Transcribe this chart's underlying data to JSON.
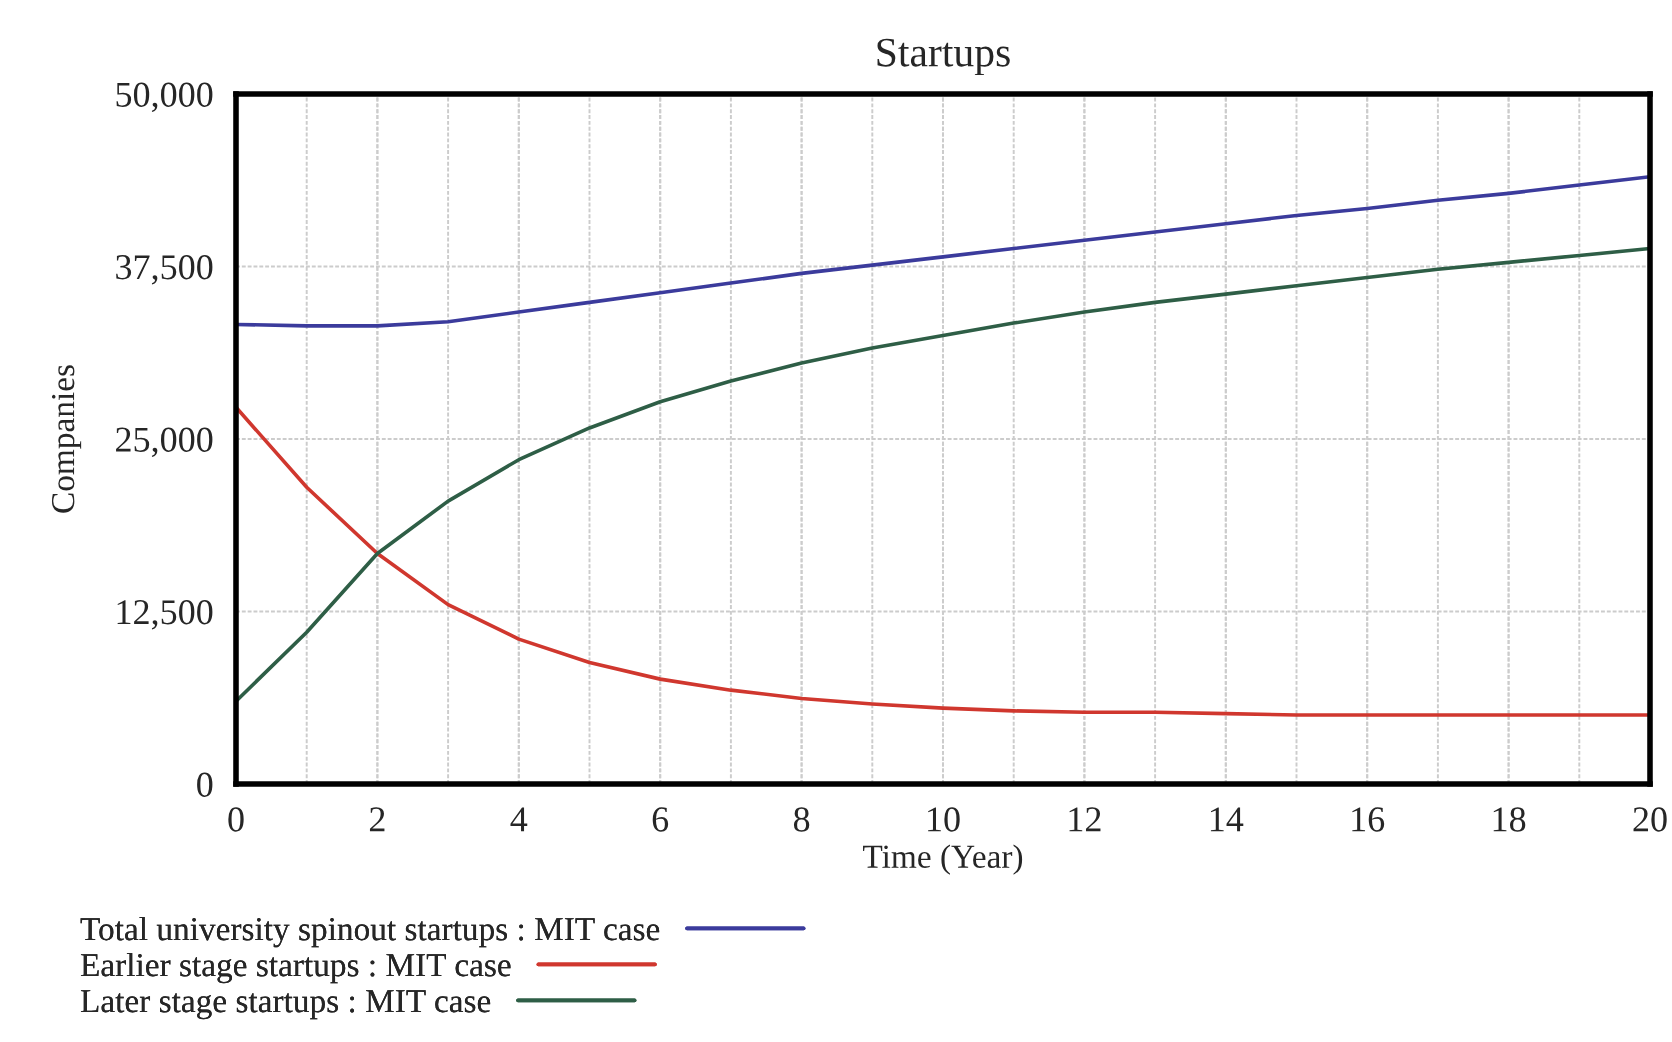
{
  "chart_data": {
    "type": "line",
    "title": "Startups",
    "xlabel": "Time (Year)",
    "ylabel": "Companies",
    "x": [
      0,
      1,
      2,
      3,
      4,
      5,
      6,
      7,
      8,
      9,
      10,
      11,
      12,
      13,
      14,
      15,
      16,
      17,
      18,
      19,
      20
    ],
    "series": [
      {
        "name": "Total university spinout startups : MIT case",
        "color": "#3b3b9c",
        "values": [
          33300,
          33200,
          33200,
          33500,
          34200,
          34900,
          35600,
          36300,
          37000,
          37600,
          38200,
          38800,
          39400,
          40000,
          40600,
          41200,
          41700,
          42300,
          42800,
          43400,
          44000
        ]
      },
      {
        "name": "Earlier stage startups : MIT case",
        "color": "#d0372e",
        "values": [
          27300,
          21500,
          16700,
          13000,
          10500,
          8800,
          7600,
          6800,
          6200,
          5800,
          5500,
          5300,
          5200,
          5200,
          5100,
          5000,
          5000,
          5000,
          5000,
          5000,
          5000
        ]
      },
      {
        "name": "Later stage startups : MIT case",
        "color": "#2e5e46",
        "values": [
          6000,
          11000,
          16700,
          20500,
          23500,
          25800,
          27700,
          29200,
          30500,
          31600,
          32500,
          33400,
          34200,
          34900,
          35500,
          36100,
          36700,
          37300,
          37800,
          38300,
          38800
        ]
      }
    ],
    "xlim": [
      0,
      20
    ],
    "xticks": [
      0,
      2,
      4,
      6,
      8,
      10,
      12,
      14,
      16,
      18,
      20
    ],
    "ylim": [
      0,
      50000
    ],
    "yticks": [
      {
        "value": 0,
        "label": "0"
      },
      {
        "value": 12500,
        "label": "12,500"
      },
      {
        "value": 25000,
        "label": "25,000"
      },
      {
        "value": 37500,
        "label": "37,500"
      },
      {
        "value": 50000,
        "label": "50,000"
      }
    ],
    "grid": true,
    "legend": "bottom",
    "marker": "none",
    "line_style": "solid"
  }
}
